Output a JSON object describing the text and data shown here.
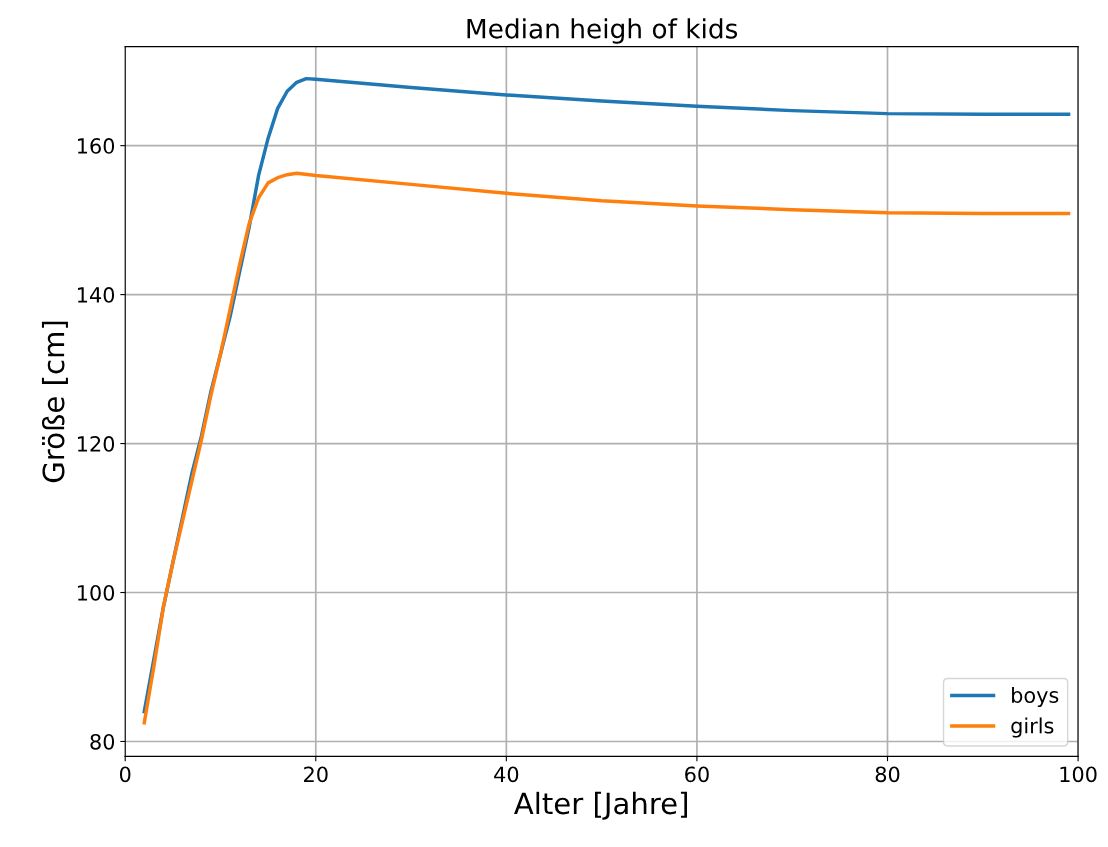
{
  "chart_data": {
    "type": "line",
    "title": "Median heigh of kids",
    "xlabel": "Alter [Jahre]",
    "ylabel": "Größe [cm]",
    "xlim": [
      0,
      100
    ],
    "xticks": [
      0,
      20,
      40,
      60,
      80,
      100
    ],
    "ylim": [
      78,
      173.3
    ],
    "yticks": [
      80,
      100,
      120,
      140,
      160
    ],
    "grid": true,
    "legend": "bottom right",
    "series": [
      {
        "name": "boys",
        "color": "#1f77b4",
        "x": [
          2,
          3,
          4,
          5,
          6,
          7,
          8,
          9,
          10,
          11,
          12,
          13,
          14,
          15,
          16,
          17,
          18,
          19,
          20,
          30,
          40,
          50,
          60,
          70,
          80,
          90,
          99
        ],
        "values": [
          84,
          91,
          98,
          104,
          110,
          116,
          121,
          127,
          132,
          137,
          143,
          149,
          156,
          161,
          165,
          167.3,
          168.5,
          169,
          168.9,
          167.8,
          166.8,
          166,
          165.3,
          164.7,
          164.3,
          164.2,
          164.2
        ]
      },
      {
        "name": "girls",
        "color": "#ff7f0e",
        "x": [
          2,
          3,
          4,
          5,
          6,
          7,
          8,
          9,
          10,
          11,
          12,
          13,
          14,
          15,
          16,
          17,
          18,
          20,
          30,
          40,
          50,
          60,
          70,
          80,
          90,
          99
        ],
        "values": [
          82.5,
          90,
          98,
          104,
          109.5,
          115,
          120.5,
          126.5,
          132,
          138,
          144,
          149.5,
          153,
          155,
          155.7,
          156.1,
          156.3,
          156,
          154.8,
          153.6,
          152.6,
          151.9,
          151.4,
          151,
          150.9,
          150.9
        ]
      }
    ]
  }
}
